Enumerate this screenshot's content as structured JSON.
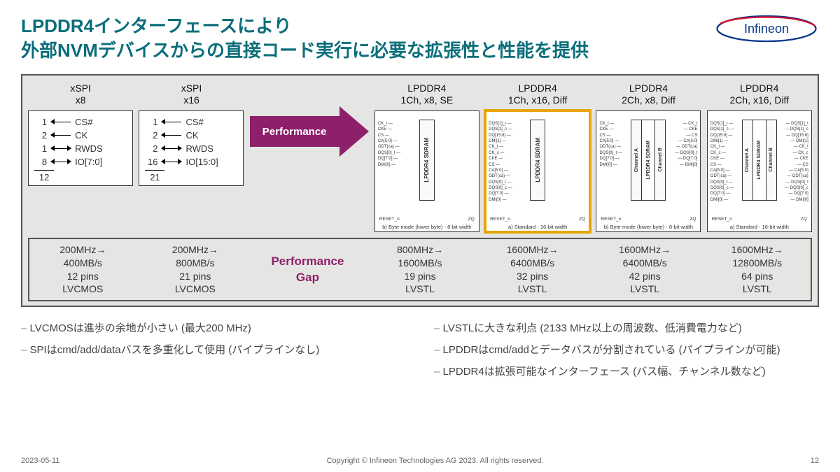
{
  "colors": {
    "title": "#0b6e7a",
    "accent": "#8e1f6b",
    "panel_bg": "#e5e5e3",
    "panel_border": "#555555",
    "highlight": "#e9a500",
    "text": "#333333"
  },
  "title_line1": "LPDDR4インターフェースにより",
  "title_line2": "外部NVMデバイスからの直接コード実行に必要な拡張性と性能を提供",
  "logo_text": "Infineon",
  "arrow_label": "Performance",
  "gap_label_l1": "Performance",
  "gap_label_l2": "Gap",
  "columns": [
    {
      "h1": "xSPI",
      "h2": "x8"
    },
    {
      "h1": "xSPI",
      "h2": "x16"
    },
    {
      "h1": "LPDDR4",
      "h2": "1Ch, x8, SE"
    },
    {
      "h1": "LPDDR4",
      "h2": "1Ch, x16, Diff"
    },
    {
      "h1": "LPDDR4",
      "h2": "2Ch, x8, Diff"
    },
    {
      "h1": "LPDDR4",
      "h2": "2Ch, x16, Diff"
    }
  ],
  "xspi": [
    {
      "pins": [
        {
          "n": "1",
          "lab": "CS#",
          "dir": "left"
        },
        {
          "n": "2",
          "lab": "CK",
          "dir": "left"
        },
        {
          "n": "1",
          "lab": "RWDS",
          "dir": "both"
        },
        {
          "n": "8",
          "lab": "IO[7:0]",
          "dir": "both"
        }
      ],
      "total": "12"
    },
    {
      "pins": [
        {
          "n": "1",
          "lab": "CS#",
          "dir": "left"
        },
        {
          "n": "2",
          "lab": "CK",
          "dir": "left"
        },
        {
          "n": "2",
          "lab": "RWDS",
          "dir": "both"
        },
        {
          "n": "16",
          "lab": "IO[15:0]",
          "dir": "both"
        }
      ],
      "total": "21"
    }
  ],
  "lpddr_pins_left_se": [
    "CK_t",
    "CKE",
    "CS",
    "CA[5:0]",
    "ODT(ca)",
    "DQS[0]_t",
    "DQ[7:0]",
    "DMI[0]"
  ],
  "lpddr_pins_left_diff": [
    "DQS[1]_t",
    "DQS[1]_c",
    "DQ[15:8]",
    "DMI[1]",
    "CK_t",
    "CK_c",
    "CKE",
    "CS",
    "CA[5:0]",
    "ODT(ca)",
    "DQS[0]_t",
    "DQS[0]_c",
    "DQ[7:0]",
    "DMI[0]"
  ],
  "lpddr_foot_l": "RESET_n",
  "lpddr_foot_r": "ZQ",
  "chip_label": "LPDDR4 SDRAM",
  "chan_a": "Channel A",
  "chan_b": "Channel B",
  "caption_byte": "b) Byte-mode (lower byte) - 8-bit width",
  "caption_std": "a) Standard - 16-bit width",
  "specs": [
    {
      "freq": "200MHz→",
      "bw": "400MB/s",
      "pins": "12 pins",
      "io": "LVCMOS"
    },
    {
      "freq": "200MHz→",
      "bw": "800MB/s",
      "pins": "21 pins",
      "io": "LVCMOS"
    },
    {
      "freq": "800MHz→",
      "bw": "1600MB/s",
      "pins": "19 pins",
      "io": "LVSTL"
    },
    {
      "freq": "1600MHz→",
      "bw": "6400MB/s",
      "pins": "32 pins",
      "io": "LVSTL"
    },
    {
      "freq": "1600MHz→",
      "bw": "6400MB/s",
      "pins": "42 pins",
      "io": "LVSTL"
    },
    {
      "freq": "1600MHz→",
      "bw": "12800MB/s",
      "pins": "64 pins",
      "io": "LVSTL"
    }
  ],
  "bullets_left": [
    "LVCMOSは進歩の余地が小さい (最大200 MHz)",
    "SPIはcmd/add/dataバスを多重化して使用 (パイプラインなし)"
  ],
  "bullets_right": [
    "LVSTLに大きな利点 (2133 MHz以上の周波数、低消費電力など)",
    "LPDDRはcmd/addとデータバスが分割されている (パイプラインが可能)",
    "LPDDR4は拡張可能なインターフェース (バス幅、チャンネル数など)"
  ],
  "footer": {
    "date": "2023-05-11",
    "copyright": "Copyright © Infineon Technologies AG 2023. All rights reserved.",
    "page": "12"
  }
}
